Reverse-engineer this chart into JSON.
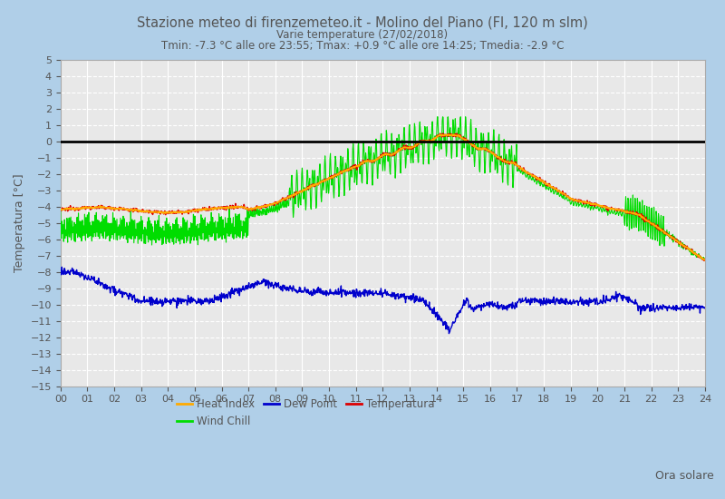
{
  "title": "Stazione meteo di firenzemeteo.it - Molino del Piano (FI, 120 m slm)",
  "subtitle1": "Varie temperature (27/02/2018)",
  "subtitle2": "Tmin: -7.3 °C alle ore 23:55; Tmax: +0.9 °C alle ore 14:25; Tmedia: -2.9 °C",
  "xlabel": "Ora solare",
  "ylabel": "Temperatura [°C]",
  "ylim": [
    -15,
    5
  ],
  "yticks": [
    -15,
    -14,
    -13,
    -12,
    -11,
    -10,
    -9,
    -8,
    -7,
    -6,
    -5,
    -4,
    -3,
    -2,
    -1,
    0,
    1,
    2,
    3,
    4,
    5
  ],
  "xtick_labels": [
    "00",
    "01",
    "02",
    "03",
    "04",
    "05",
    "06",
    "07",
    "08",
    "09",
    "10",
    "11",
    "12",
    "13",
    "14",
    "15",
    "16",
    "17",
    "18",
    "19",
    "20",
    "21",
    "22",
    "23",
    "24"
  ],
  "bg_color": "#b0cfe8",
  "plot_bg_color": "#e8e8e8",
  "grid_color": "#ffffff",
  "zero_line_color": "#000000",
  "temperature_color": "#dd0000",
  "heat_index_color": "#ffaa00",
  "wind_chill_color": "#00dd00",
  "dew_point_color": "#0000cc",
  "title_color": "#555555"
}
